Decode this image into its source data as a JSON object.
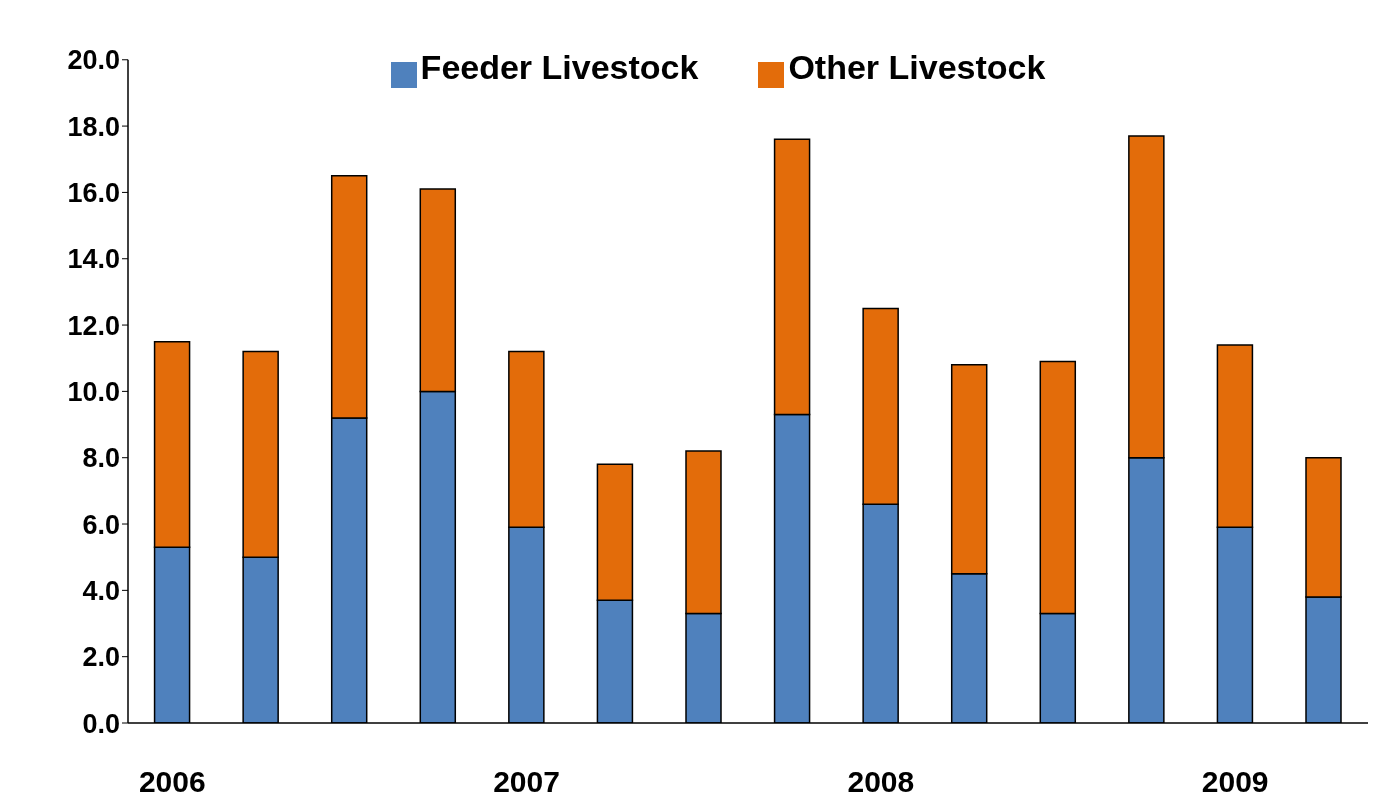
{
  "chart_data": {
    "type": "bar",
    "stacked": true,
    "categories": [
      "2006",
      null,
      null,
      null,
      "2007",
      null,
      null,
      null,
      "2008",
      null,
      null,
      null,
      "2009",
      null
    ],
    "series": [
      {
        "name": "Feeder Livestock",
        "color": "#4f81bd",
        "values": [
          5.3,
          5.0,
          9.2,
          10.0,
          5.9,
          3.7,
          3.3,
          9.3,
          6.6,
          4.5,
          3.3,
          8.0,
          5.9,
          3.8
        ]
      },
      {
        "name": "Other Livestock",
        "color": "#e36c0a",
        "values": [
          6.2,
          6.2,
          7.3,
          6.1,
          5.3,
          4.1,
          4.9,
          8.3,
          5.9,
          6.3,
          7.6,
          9.7,
          5.5,
          4.2
        ]
      }
    ],
    "ylim": [
      0,
      20
    ],
    "yticks": [
      {
        "value": 0,
        "label": "0.0"
      },
      {
        "value": 2,
        "label": "2.0"
      },
      {
        "value": 4,
        "label": "4.0"
      },
      {
        "value": 6,
        "label": "6.0"
      },
      {
        "value": 8,
        "label": "8.0"
      },
      {
        "value": 10,
        "label": "10.0"
      },
      {
        "value": 12,
        "label": "12.0"
      },
      {
        "value": 14,
        "label": "14.0"
      },
      {
        "value": 16,
        "label": "16.0"
      },
      {
        "value": 18,
        "label": "18.0"
      },
      {
        "value": 20,
        "label": "20.0"
      }
    ],
    "grid": false,
    "legend": "top"
  }
}
